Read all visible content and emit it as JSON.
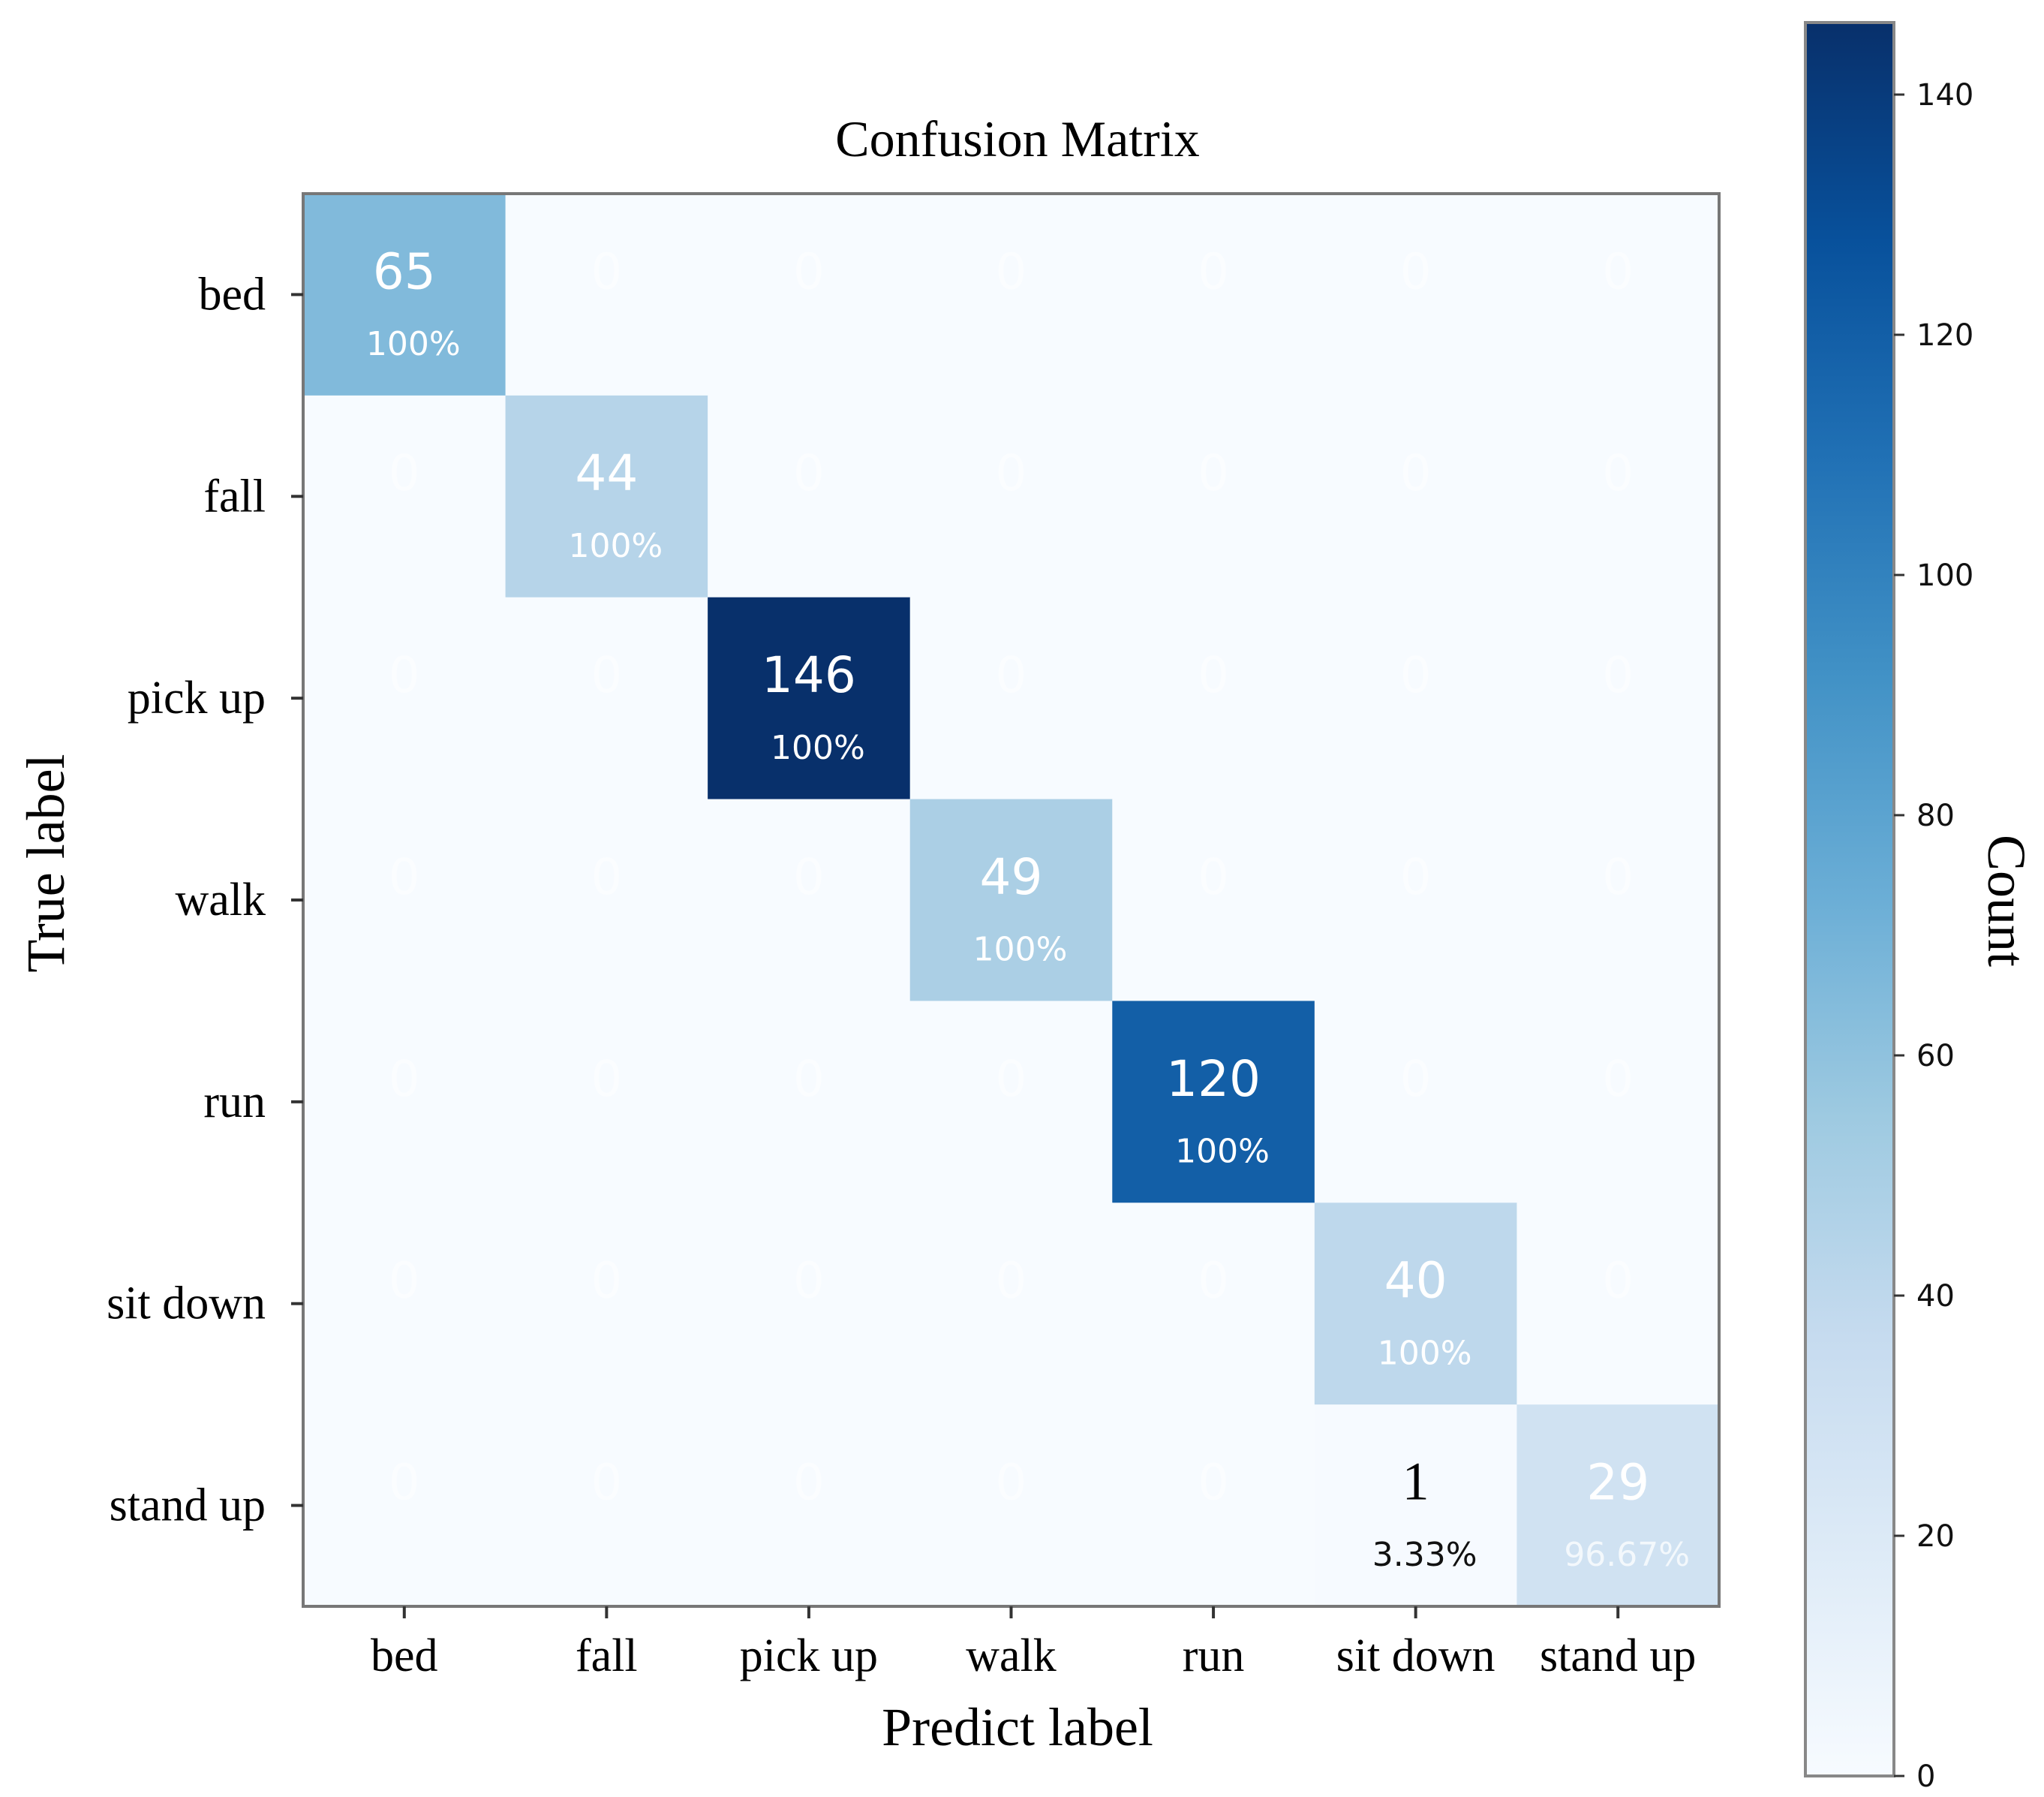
{
  "chart_data": {
    "type": "heatmap",
    "title": "Confusion Matrix",
    "xlabel": "Predict label",
    "ylabel": "True label",
    "x_categories": [
      "bed",
      "fall",
      "pick up",
      "walk",
      "run",
      "sit down",
      "stand up"
    ],
    "y_categories": [
      "bed",
      "fall",
      "pick up",
      "walk",
      "run",
      "sit down",
      "stand up"
    ],
    "matrix": [
      [
        65,
        0,
        0,
        0,
        0,
        0,
        0
      ],
      [
        0,
        44,
        0,
        0,
        0,
        0,
        0
      ],
      [
        0,
        0,
        146,
        0,
        0,
        0,
        0
      ],
      [
        0,
        0,
        0,
        49,
        0,
        0,
        0
      ],
      [
        0,
        0,
        0,
        0,
        120,
        0,
        0
      ],
      [
        0,
        0,
        0,
        0,
        0,
        40,
        0
      ],
      [
        0,
        0,
        0,
        0,
        0,
        1,
        29
      ]
    ],
    "percent_labels": [
      {
        "row": 0,
        "col": 0,
        "text": "100%"
      },
      {
        "row": 1,
        "col": 1,
        "text": "100%"
      },
      {
        "row": 2,
        "col": 2,
        "text": "100%"
      },
      {
        "row": 3,
        "col": 3,
        "text": "100%"
      },
      {
        "row": 4,
        "col": 4,
        "text": "100%"
      },
      {
        "row": 5,
        "col": 5,
        "text": "100%"
      },
      {
        "row": 6,
        "col": 5,
        "text": "3.33%"
      },
      {
        "row": 6,
        "col": 6,
        "text": "96.67%"
      }
    ],
    "colorbar": {
      "label": "Count",
      "range": [
        0,
        146
      ],
      "ticks": [
        0,
        20,
        40,
        60,
        80,
        100,
        120,
        140
      ],
      "colormap": "Blues",
      "color_low": "#f7fbff",
      "color_high": "#08306b"
    }
  }
}
